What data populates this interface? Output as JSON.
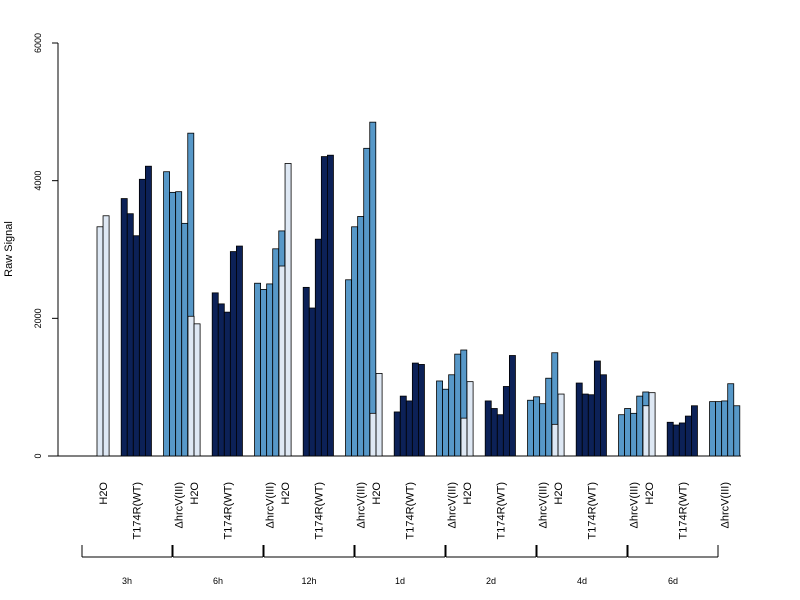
{
  "chart_data": {
    "type": "bar",
    "title": "",
    "ylabel": "Raw Signal",
    "xlabel": "",
    "ylim": [
      0,
      6000
    ],
    "yticks": [
      "0",
      "2000",
      "4000",
      "6000"
    ],
    "grid": false,
    "legend": "none",
    "time_points": [
      "3h",
      "6h",
      "12h",
      "1d",
      "2d",
      "4d",
      "6d"
    ],
    "groups": [
      {
        "label": "H2O",
        "color": "#dee8f4"
      },
      {
        "label": "T174R(WT)",
        "color": "#0c2157"
      },
      {
        "label": "ΔhrcV(III)",
        "color": "#5798c8"
      }
    ],
    "values": [
      [
        [
          3330,
          3490
        ],
        [
          3740,
          3520,
          3200,
          4020,
          4210
        ],
        [
          4130,
          3830,
          3840,
          3380,
          4690
        ]
      ],
      [
        [
          2030,
          1920
        ],
        [
          2370,
          2210,
          2090,
          2970,
          3050
        ],
        [
          2510,
          2420,
          2500,
          3010,
          3270
        ]
      ],
      [
        [
          2760,
          4250
        ],
        [
          2450,
          2150,
          3150,
          4350,
          4370
        ],
        [
          2560,
          3330,
          3480,
          4470,
          4850
        ]
      ],
      [
        [
          620,
          1200
        ],
        [
          640,
          870,
          800,
          1350,
          1330
        ],
        [
          1090,
          970,
          1180,
          1480,
          1540
        ]
      ],
      [
        [
          550,
          1080
        ],
        [
          800,
          690,
          600,
          1010,
          1460
        ],
        [
          810,
          860,
          760,
          1130,
          1500
        ]
      ],
      [
        [
          460,
          900
        ],
        [
          1060,
          900,
          890,
          1380,
          1180
        ],
        [
          600,
          690,
          620,
          870,
          930
        ]
      ],
      [
        [
          730,
          920
        ],
        [
          490,
          450,
          480,
          580,
          730
        ],
        [
          790,
          790,
          800,
          1050,
          730
        ]
      ]
    ]
  }
}
